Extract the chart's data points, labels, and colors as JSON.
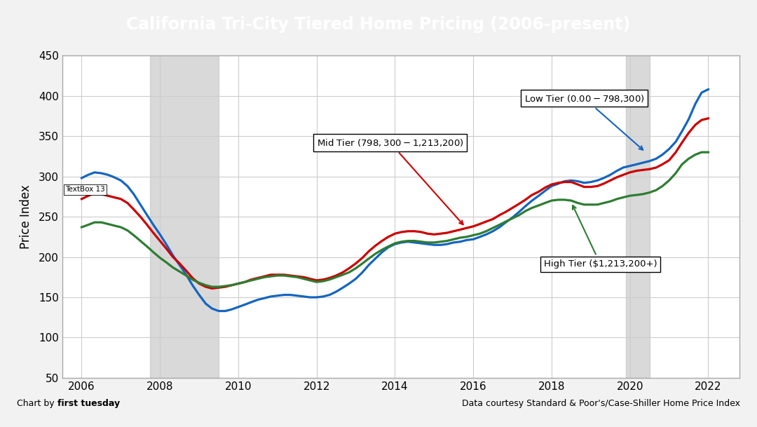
{
  "title": "California Tri-City Tiered Home Pricing (2006-present)",
  "title_bg_color": "#7B2FBE",
  "title_text_color": "#FFFFFF",
  "ylabel": "Price Index",
  "footer_left_regular": "Chart by ",
  "footer_left_bold": "first tuesday",
  "footer_right": "Data courtesy Standard & Poor's/Case-Shiller Home Price Index",
  "ylim": [
    50,
    450
  ],
  "yticks": [
    50,
    100,
    150,
    200,
    250,
    300,
    350,
    400,
    450
  ],
  "xlim_start": 2005.5,
  "xlim_end": 2022.8,
  "xticks": [
    2006,
    2008,
    2010,
    2012,
    2014,
    2016,
    2018,
    2020,
    2022
  ],
  "recession1_start": 2007.75,
  "recession1_end": 2009.5,
  "recession2_start": 2019.9,
  "recession2_end": 2020.5,
  "low_tier_label": "Low Tier ($0.00 - $798,300)",
  "mid_tier_label": "Mid Tier ($798,300 - $1,213,200)",
  "high_tier_label": "High Tier ($1,213,200+)",
  "low_tier_color": "#1565C0",
  "mid_tier_color": "#CC0000",
  "high_tier_color": "#2E7D32",
  "low_tier_x": [
    2006.0,
    2006.17,
    2006.33,
    2006.5,
    2006.67,
    2006.83,
    2007.0,
    2007.17,
    2007.33,
    2007.5,
    2007.67,
    2007.83,
    2008.0,
    2008.17,
    2008.33,
    2008.5,
    2008.67,
    2008.83,
    2009.0,
    2009.17,
    2009.33,
    2009.5,
    2009.67,
    2009.83,
    2010.0,
    2010.17,
    2010.33,
    2010.5,
    2010.67,
    2010.83,
    2011.0,
    2011.17,
    2011.33,
    2011.5,
    2011.67,
    2011.83,
    2012.0,
    2012.17,
    2012.33,
    2012.5,
    2012.67,
    2012.83,
    2013.0,
    2013.17,
    2013.33,
    2013.5,
    2013.67,
    2013.83,
    2014.0,
    2014.17,
    2014.33,
    2014.5,
    2014.67,
    2014.83,
    2015.0,
    2015.17,
    2015.33,
    2015.5,
    2015.67,
    2015.83,
    2016.0,
    2016.17,
    2016.33,
    2016.5,
    2016.67,
    2016.83,
    2017.0,
    2017.17,
    2017.33,
    2017.5,
    2017.67,
    2017.83,
    2018.0,
    2018.17,
    2018.33,
    2018.5,
    2018.67,
    2018.83,
    2019.0,
    2019.17,
    2019.33,
    2019.5,
    2019.67,
    2019.83,
    2020.0,
    2020.17,
    2020.33,
    2020.5,
    2020.67,
    2020.83,
    2021.0,
    2021.17,
    2021.33,
    2021.5,
    2021.67,
    2021.83,
    2022.0
  ],
  "low_tier_y": [
    298,
    302,
    305,
    304,
    302,
    299,
    295,
    288,
    278,
    265,
    252,
    240,
    228,
    215,
    202,
    190,
    178,
    165,
    153,
    142,
    136,
    133,
    133,
    135,
    138,
    141,
    144,
    147,
    149,
    151,
    152,
    153,
    153,
    152,
    151,
    150,
    150,
    151,
    153,
    157,
    162,
    167,
    173,
    181,
    190,
    198,
    206,
    212,
    216,
    218,
    219,
    218,
    217,
    216,
    215,
    215,
    216,
    218,
    219,
    221,
    222,
    225,
    228,
    232,
    237,
    243,
    249,
    256,
    263,
    270,
    276,
    282,
    288,
    291,
    294,
    295,
    294,
    292,
    293,
    295,
    298,
    302,
    307,
    311,
    313,
    315,
    317,
    319,
    322,
    327,
    334,
    343,
    356,
    371,
    390,
    404,
    408
  ],
  "mid_tier_x": [
    2006.0,
    2006.17,
    2006.33,
    2006.5,
    2006.67,
    2006.83,
    2007.0,
    2007.17,
    2007.33,
    2007.5,
    2007.67,
    2007.83,
    2008.0,
    2008.17,
    2008.33,
    2008.5,
    2008.67,
    2008.83,
    2009.0,
    2009.17,
    2009.33,
    2009.5,
    2009.67,
    2009.83,
    2010.0,
    2010.17,
    2010.33,
    2010.5,
    2010.67,
    2010.83,
    2011.0,
    2011.17,
    2011.33,
    2011.5,
    2011.67,
    2011.83,
    2012.0,
    2012.17,
    2012.33,
    2012.5,
    2012.67,
    2012.83,
    2013.0,
    2013.17,
    2013.33,
    2013.5,
    2013.67,
    2013.83,
    2014.0,
    2014.17,
    2014.33,
    2014.5,
    2014.67,
    2014.83,
    2015.0,
    2015.17,
    2015.33,
    2015.5,
    2015.67,
    2015.83,
    2016.0,
    2016.17,
    2016.33,
    2016.5,
    2016.67,
    2016.83,
    2017.0,
    2017.17,
    2017.33,
    2017.5,
    2017.67,
    2017.83,
    2018.0,
    2018.17,
    2018.33,
    2018.5,
    2018.67,
    2018.83,
    2019.0,
    2019.17,
    2019.33,
    2019.5,
    2019.67,
    2019.83,
    2020.0,
    2020.17,
    2020.33,
    2020.5,
    2020.67,
    2020.83,
    2021.0,
    2021.17,
    2021.33,
    2021.5,
    2021.67,
    2021.83,
    2022.0
  ],
  "mid_tier_y": [
    272,
    276,
    279,
    278,
    276,
    274,
    272,
    267,
    259,
    250,
    240,
    230,
    220,
    210,
    200,
    192,
    183,
    174,
    167,
    163,
    161,
    162,
    163,
    165,
    167,
    169,
    172,
    174,
    176,
    178,
    178,
    178,
    177,
    176,
    175,
    173,
    171,
    172,
    174,
    177,
    181,
    186,
    192,
    199,
    207,
    214,
    220,
    225,
    229,
    231,
    232,
    232,
    231,
    229,
    228,
    229,
    230,
    232,
    234,
    236,
    238,
    241,
    244,
    247,
    252,
    256,
    261,
    266,
    271,
    277,
    281,
    286,
    290,
    292,
    293,
    293,
    290,
    287,
    287,
    288,
    291,
    295,
    299,
    302,
    305,
    307,
    308,
    309,
    311,
    315,
    320,
    330,
    342,
    354,
    364,
    370,
    372
  ],
  "high_tier_x": [
    2006.0,
    2006.17,
    2006.33,
    2006.5,
    2006.67,
    2006.83,
    2007.0,
    2007.17,
    2007.33,
    2007.5,
    2007.67,
    2007.83,
    2008.0,
    2008.17,
    2008.33,
    2008.5,
    2008.67,
    2008.83,
    2009.0,
    2009.17,
    2009.33,
    2009.5,
    2009.67,
    2009.83,
    2010.0,
    2010.17,
    2010.33,
    2010.5,
    2010.67,
    2010.83,
    2011.0,
    2011.17,
    2011.33,
    2011.5,
    2011.67,
    2011.83,
    2012.0,
    2012.17,
    2012.33,
    2012.5,
    2012.67,
    2012.83,
    2013.0,
    2013.17,
    2013.33,
    2013.5,
    2013.67,
    2013.83,
    2014.0,
    2014.17,
    2014.33,
    2014.5,
    2014.67,
    2014.83,
    2015.0,
    2015.17,
    2015.33,
    2015.5,
    2015.67,
    2015.83,
    2016.0,
    2016.17,
    2016.33,
    2016.5,
    2016.67,
    2016.83,
    2017.0,
    2017.17,
    2017.33,
    2017.5,
    2017.67,
    2017.83,
    2018.0,
    2018.17,
    2018.33,
    2018.5,
    2018.67,
    2018.83,
    2019.0,
    2019.17,
    2019.33,
    2019.5,
    2019.67,
    2019.83,
    2020.0,
    2020.17,
    2020.33,
    2020.5,
    2020.67,
    2020.83,
    2021.0,
    2021.17,
    2021.33,
    2021.5,
    2021.67,
    2021.83,
    2022.0
  ],
  "high_tier_y": [
    237,
    240,
    243,
    243,
    241,
    239,
    237,
    233,
    227,
    220,
    213,
    206,
    199,
    193,
    187,
    182,
    177,
    172,
    168,
    165,
    163,
    163,
    164,
    165,
    167,
    169,
    171,
    173,
    175,
    176,
    177,
    177,
    176,
    175,
    173,
    171,
    169,
    170,
    172,
    175,
    178,
    181,
    186,
    192,
    198,
    204,
    209,
    213,
    217,
    219,
    220,
    220,
    219,
    218,
    218,
    219,
    220,
    222,
    224,
    225,
    227,
    229,
    232,
    236,
    240,
    244,
    248,
    252,
    257,
    261,
    264,
    267,
    270,
    271,
    271,
    270,
    267,
    265,
    265,
    265,
    267,
    269,
    272,
    274,
    276,
    277,
    278,
    280,
    283,
    288,
    295,
    304,
    315,
    322,
    327,
    330,
    330
  ],
  "grid_color": "#CCCCCC",
  "plot_bg_color": "#FFFFFF",
  "outer_bg_color": "#F2F2F2",
  "border_color": "#AAAAAA"
}
